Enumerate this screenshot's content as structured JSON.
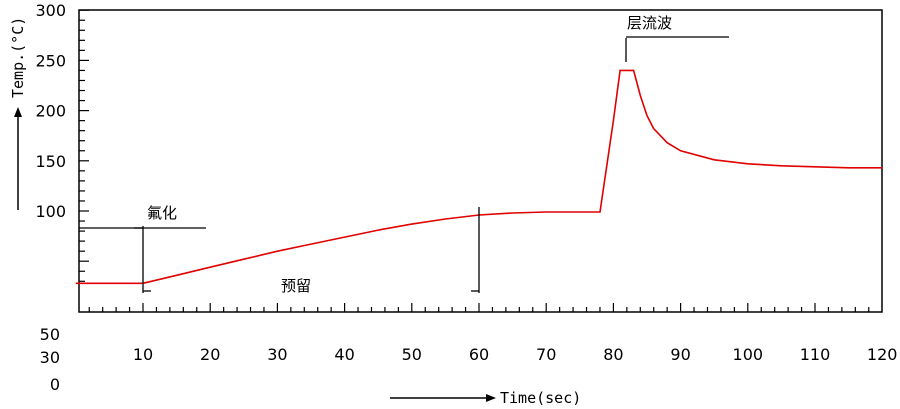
{
  "chart_data": {
    "type": "line",
    "xlabel": "Time(sec)",
    "ylabel": "Temp.(°C)",
    "xlim": [
      0,
      120
    ],
    "ylim": [
      0,
      300
    ],
    "x_ticks": [
      "10",
      "20",
      "30",
      "40",
      "50",
      "60",
      "70",
      "80",
      "90",
      "100",
      "110",
      "120"
    ],
    "y_ticks": [
      "100",
      "150",
      "200",
      "250",
      "300"
    ],
    "y_ticks_below": [
      "50",
      "30",
      "0"
    ],
    "grid": false,
    "series": [
      {
        "color": "#e00000",
        "x": [
          0,
          8,
          10,
          15,
          20,
          25,
          30,
          35,
          40,
          45,
          50,
          55,
          60,
          65,
          70,
          75,
          78,
          80,
          81,
          83,
          84,
          85,
          86,
          88,
          90,
          95,
          100,
          105,
          110,
          115,
          120
        ],
        "y": [
          28,
          28,
          28,
          36,
          44,
          52,
          60,
          67,
          74,
          81,
          87,
          92,
          96,
          98,
          99,
          99,
          99,
          190,
          240,
          240,
          215,
          195,
          182,
          168,
          160,
          151,
          147,
          145,
          144,
          143,
          143
        ]
      }
    ],
    "annotations": {
      "fluoride": "氟化",
      "preheat": "预留",
      "wave": "层流波"
    }
  }
}
